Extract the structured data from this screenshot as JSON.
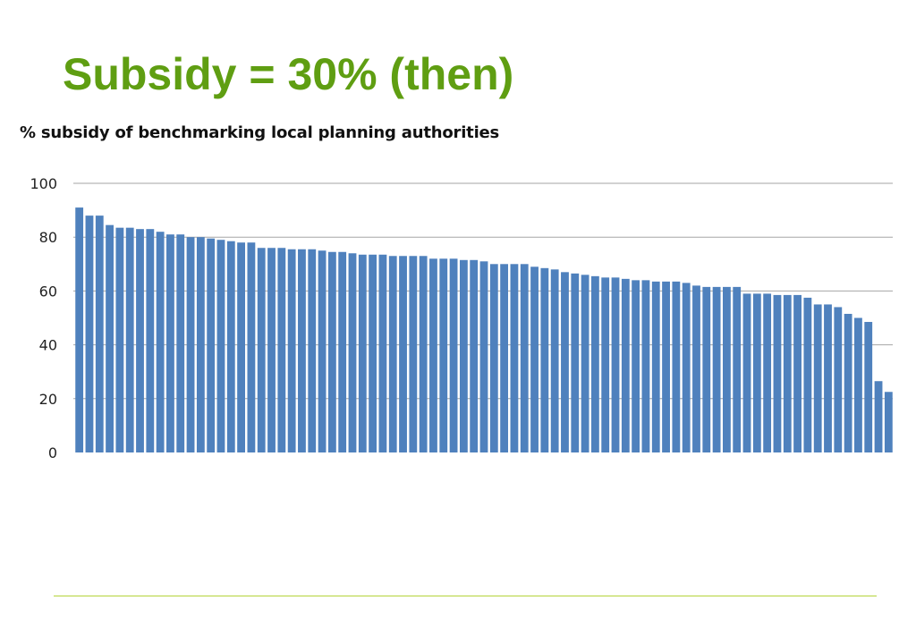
{
  "slide": {
    "title": "Subsidy = 30% (then)"
  },
  "colors": {
    "title": "#5f9e12",
    "bar": "#4f81bd",
    "gridline": "#a6a6a6",
    "footer_rule": "#b5d33a"
  },
  "chart_data": {
    "type": "bar",
    "title": "% subsidy of benchmarking local planning authorities",
    "xlabel": "",
    "ylabel": "",
    "ylim": [
      0,
      100
    ],
    "yticks": [
      0,
      20,
      40,
      60,
      80,
      100
    ],
    "grid": true,
    "legend": "none",
    "values": [
      91,
      88,
      88,
      84.5,
      83.5,
      83.5,
      83,
      83,
      82,
      81,
      81,
      80,
      80,
      79.5,
      79,
      78.5,
      78,
      78,
      76,
      76,
      76,
      75.5,
      75.5,
      75.5,
      75,
      74.5,
      74.5,
      74,
      73.5,
      73.5,
      73.5,
      73,
      73,
      73,
      73,
      72,
      72,
      72,
      71.5,
      71.5,
      71,
      70,
      70,
      70,
      70,
      69,
      68.5,
      68,
      67,
      66.5,
      66,
      65.5,
      65,
      65,
      64.5,
      64,
      64,
      63.5,
      63.5,
      63.5,
      63,
      62,
      61.5,
      61.5,
      61.5,
      61.5,
      59,
      59,
      59,
      58.5,
      58.5,
      58.5,
      57.5,
      55,
      55,
      54,
      51.5,
      50,
      48.5,
      26.5,
      22.5
    ]
  }
}
